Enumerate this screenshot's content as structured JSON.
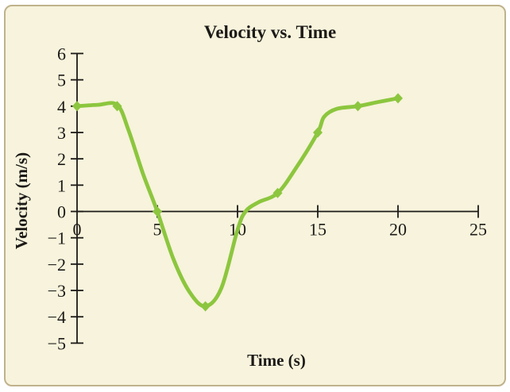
{
  "window": {
    "background": "#ffffff",
    "card_background": "#f7f3dc",
    "card_border_color": "#bfb28c"
  },
  "chart_data": {
    "type": "line",
    "title": "Velocity vs. Time",
    "xlabel": "Time (s)",
    "ylabel": "Velocity (m/s)",
    "xlim": [
      0,
      25
    ],
    "ylim": [
      -5,
      6
    ],
    "xticks": [
      0,
      5,
      10,
      15,
      20,
      25
    ],
    "yticks": [
      6,
      5,
      4,
      3,
      2,
      1,
      0,
      -1,
      -2,
      -3,
      -4,
      -5
    ],
    "grid": false,
    "legend": false,
    "colors": {
      "line": "#8cc63e",
      "marker": "#8cc63e",
      "axis": "#1c1a17",
      "text": "#1c1a17"
    },
    "series": [
      {
        "name": "velocity",
        "marker": "diamond",
        "points": [
          [
            0,
            4
          ],
          [
            2.5,
            4
          ],
          [
            5,
            0
          ],
          [
            8,
            -3.6
          ],
          [
            12.5,
            0.7
          ],
          [
            15,
            3
          ],
          [
            17.5,
            4
          ],
          [
            20,
            4.3
          ]
        ],
        "curve_points": [
          [
            0,
            4
          ],
          [
            1.3,
            4.05
          ],
          [
            2.5,
            4.05
          ],
          [
            3.2,
            3.1
          ],
          [
            4.1,
            1.45
          ],
          [
            5,
            0
          ],
          [
            6,
            -1.8
          ],
          [
            7,
            -3.05
          ],
          [
            8,
            -3.6
          ],
          [
            9,
            -2.9
          ],
          [
            10,
            -0.7
          ],
          [
            10.5,
            0
          ],
          [
            11.3,
            0.35
          ],
          [
            12.5,
            0.7
          ],
          [
            13.7,
            1.7
          ],
          [
            15,
            3
          ],
          [
            15.4,
            3.6
          ],
          [
            16.2,
            3.9
          ],
          [
            17.5,
            4
          ],
          [
            18.7,
            4.15
          ],
          [
            20,
            4.3
          ]
        ]
      }
    ]
  }
}
